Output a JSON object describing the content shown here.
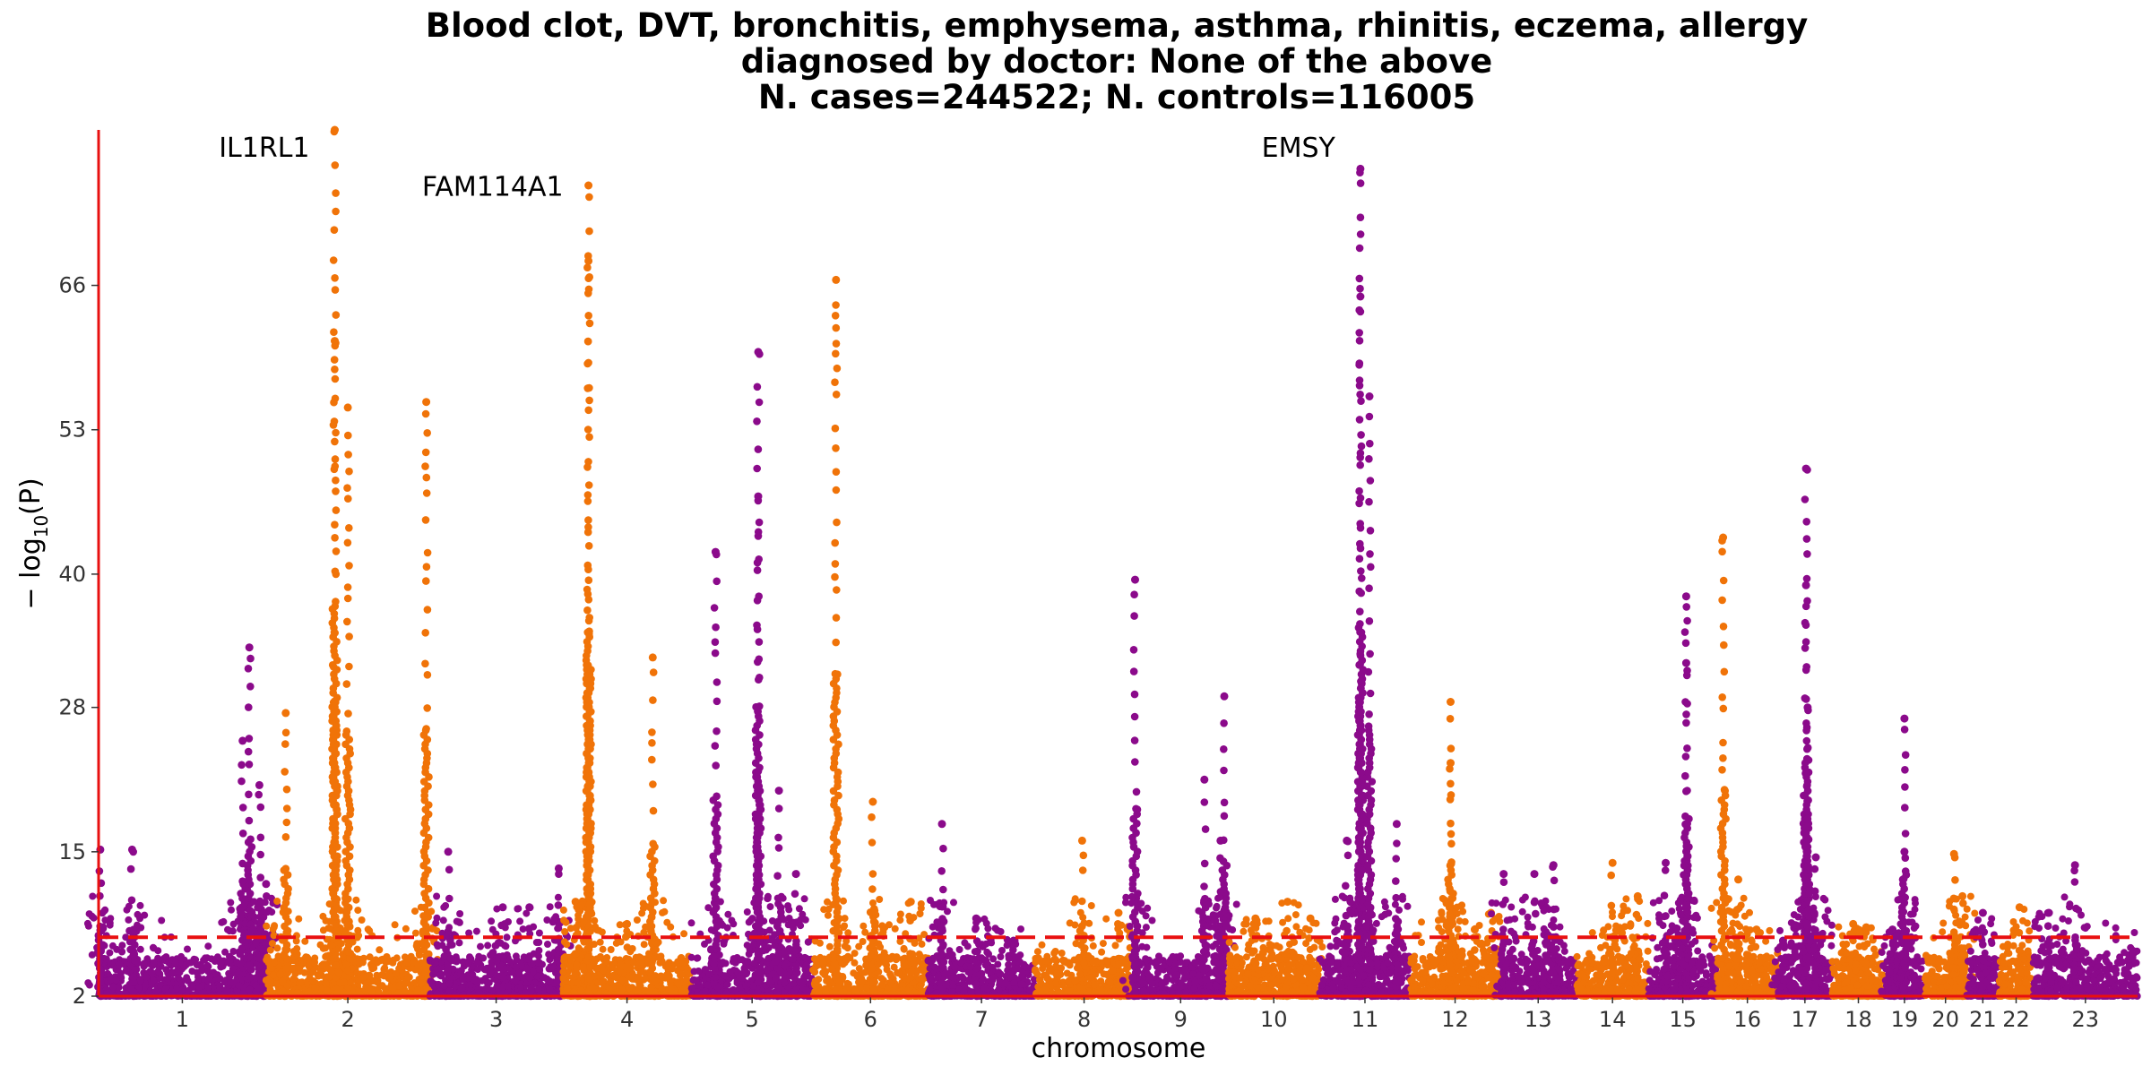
{
  "chart_data": {
    "type": "scatter",
    "subtype": "manhattan",
    "title_lines": [
      "Blood clot, DVT, bronchitis, emphysema, asthma, rhinitis, eczema, allergy",
      "diagnosed by doctor: None of the above",
      "N. cases=244522; N. controls=116005"
    ],
    "xlabel": "chromosome",
    "ylabel_main": "− log",
    "ylabel_sub": "10",
    "ylabel_var": "(P)",
    "ylim": [
      2,
      80
    ],
    "yticks": [
      2,
      15,
      28,
      40,
      53,
      66
    ],
    "threshold": 7.3,
    "colors": {
      "odd": "#8b0a8b",
      "even": "#f07308",
      "threshold": "#e81010",
      "axis": "#e81010"
    },
    "chromosomes": [
      {
        "label": "1",
        "length": 249,
        "peaks": [
          [
            0.01,
            15.2
          ],
          [
            0.2,
            15.2
          ],
          [
            0.9,
            33.4
          ],
          [
            0.86,
            25
          ],
          [
            0.96,
            21
          ],
          [
            1.0,
            12.1
          ]
        ]
      },
      {
        "label": "2",
        "length": 243,
        "peaks": [
          [
            0.12,
            27.5
          ],
          [
            0.42,
            80
          ],
          [
            0.42,
            61
          ],
          [
            0.5,
            55
          ],
          [
            0.98,
            55.5
          ]
        ]
      },
      {
        "label": "3",
        "length": 198,
        "peaks": [
          [
            0.14,
            15
          ],
          [
            0.55,
            10
          ],
          [
            0.75,
            10
          ],
          [
            0.97,
            13.5
          ]
        ]
      },
      {
        "label": "4",
        "length": 191,
        "peaks": [
          [
            0.1,
            10.5
          ],
          [
            0.2,
            75
          ],
          [
            0.2,
            68.2
          ],
          [
            0.5,
            8.5
          ],
          [
            0.7,
            32.5
          ]
        ]
      },
      {
        "label": "5",
        "length": 181,
        "peaks": [
          [
            0.2,
            42
          ],
          [
            0.55,
            60
          ],
          [
            0.55,
            47
          ],
          [
            0.72,
            20.5
          ],
          [
            0.86,
            13
          ]
        ]
      },
      {
        "label": "6",
        "length": 171,
        "peaks": [
          [
            0.2,
            66.5
          ],
          [
            0.52,
            19.5
          ],
          [
            0.85,
            10.5
          ]
        ]
      },
      {
        "label": "7",
        "length": 159,
        "peaks": [
          [
            0.13,
            17.5
          ],
          [
            0.45,
            9
          ],
          [
            0.8,
            7
          ]
        ]
      },
      {
        "label": "8",
        "length": 146,
        "peaks": [
          [
            0.48,
            16
          ],
          [
            0.85,
            9.5
          ]
        ]
      },
      {
        "label": "9",
        "length": 141,
        "peaks": [
          [
            0.02,
            39.5
          ],
          [
            0.75,
            21.5
          ],
          [
            0.92,
            16
          ],
          [
            0.96,
            29
          ]
        ]
      },
      {
        "label": "10",
        "length": 136,
        "peaks": [
          [
            0.3,
            9
          ],
          [
            0.65,
            10.5
          ],
          [
            0.9,
            9
          ]
        ]
      },
      {
        "label": "11",
        "length": 135,
        "peaks": [
          [
            0.3,
            16
          ],
          [
            0.45,
            76.5
          ],
          [
            0.45,
            65
          ],
          [
            0.55,
            56
          ],
          [
            0.85,
            17.5
          ]
        ]
      },
      {
        "label": "12",
        "length": 133,
        "peaks": [
          [
            0.45,
            28.5
          ],
          [
            0.45,
            23
          ],
          [
            0.72,
            8
          ],
          [
            0.9,
            9.5
          ]
        ]
      },
      {
        "label": "13",
        "length": 114,
        "peaks": [
          [
            0.05,
            13
          ],
          [
            0.45,
            13
          ],
          [
            0.7,
            13.8
          ]
        ]
      },
      {
        "label": "14",
        "length": 107,
        "peaks": [
          [
            0.5,
            14
          ],
          [
            0.85,
            11
          ]
        ]
      },
      {
        "label": "15",
        "length": 102,
        "peaks": [
          [
            0.25,
            14
          ],
          [
            0.55,
            38
          ],
          [
            0.55,
            32
          ]
        ]
      },
      {
        "label": "16",
        "length": 90,
        "peaks": [
          [
            0.1,
            43.3
          ],
          [
            0.35,
            12.5
          ],
          [
            0.65,
            8
          ]
        ]
      },
      {
        "label": "17",
        "length": 81,
        "peaks": [
          [
            0.1,
            7
          ],
          [
            0.52,
            49.5
          ],
          [
            0.52,
            39
          ],
          [
            0.55,
            28
          ],
          [
            0.7,
            14.5
          ]
        ]
      },
      {
        "label": "18",
        "length": 78,
        "peaks": [
          [
            0.4,
            8.5
          ],
          [
            0.65,
            8.2
          ]
        ]
      },
      {
        "label": "19",
        "length": 59,
        "peaks": [
          [
            0.2,
            8
          ],
          [
            0.5,
            27
          ],
          [
            0.5,
            15
          ]
        ]
      },
      {
        "label": "20",
        "length": 63,
        "peaks": [
          [
            0.7,
            14.8
          ],
          [
            0.9,
            11
          ]
        ]
      },
      {
        "label": "21",
        "length": 48,
        "peaks": [
          [
            0.5,
            9.5
          ]
        ]
      },
      {
        "label": "22",
        "length": 51,
        "peaks": [
          [
            0.6,
            10
          ]
        ]
      },
      {
        "label": "23",
        "length": 155,
        "peaks": [
          [
            0.15,
            9.5
          ],
          [
            0.4,
            13.8
          ]
        ]
      }
    ],
    "annotations": [
      {
        "label": "IL1RL1",
        "chrom_index": 1,
        "pos": 0.42,
        "y": 80,
        "anchor": "end"
      },
      {
        "label": "FAM114A1",
        "chrom_index": 3,
        "pos": 0.2,
        "y": 76.5,
        "anchor": "end"
      },
      {
        "label": "EMSY",
        "chrom_index": 10,
        "pos": 0.45,
        "y": 80,
        "anchor": "end"
      }
    ]
  }
}
